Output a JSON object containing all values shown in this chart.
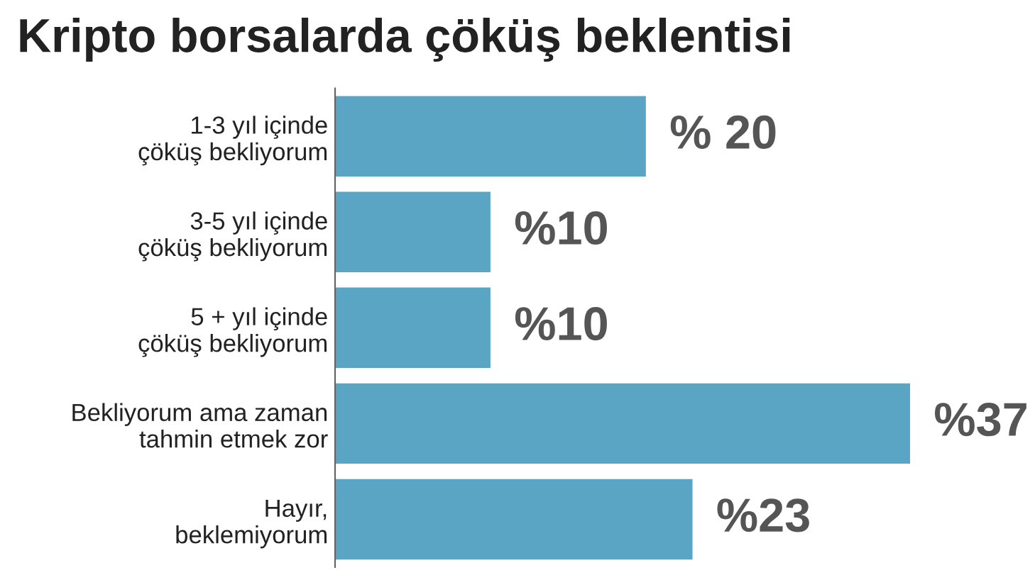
{
  "chart_data": {
    "type": "bar",
    "orientation": "horizontal",
    "title": "Kripto borsalarda çöküş beklentisi",
    "categories": [
      "1-3 yıl içinde\nçöküş bekliyorum",
      "3-5 yıl içinde\nçöküş bekliyorum",
      "5 + yıl içinde\nçöküş bekliyorum",
      "Bekliyorum ama zaman\ntahmin etmek zor",
      "Hayır,\nbeklemiyorum"
    ],
    "values": [
      20,
      10,
      10,
      37,
      23
    ],
    "value_labels": [
      "% 20",
      "%10",
      "%10",
      "%37",
      "%23"
    ],
    "color": "#5aa5c4",
    "grid": false,
    "legend": false,
    "tick_labels": "y"
  }
}
